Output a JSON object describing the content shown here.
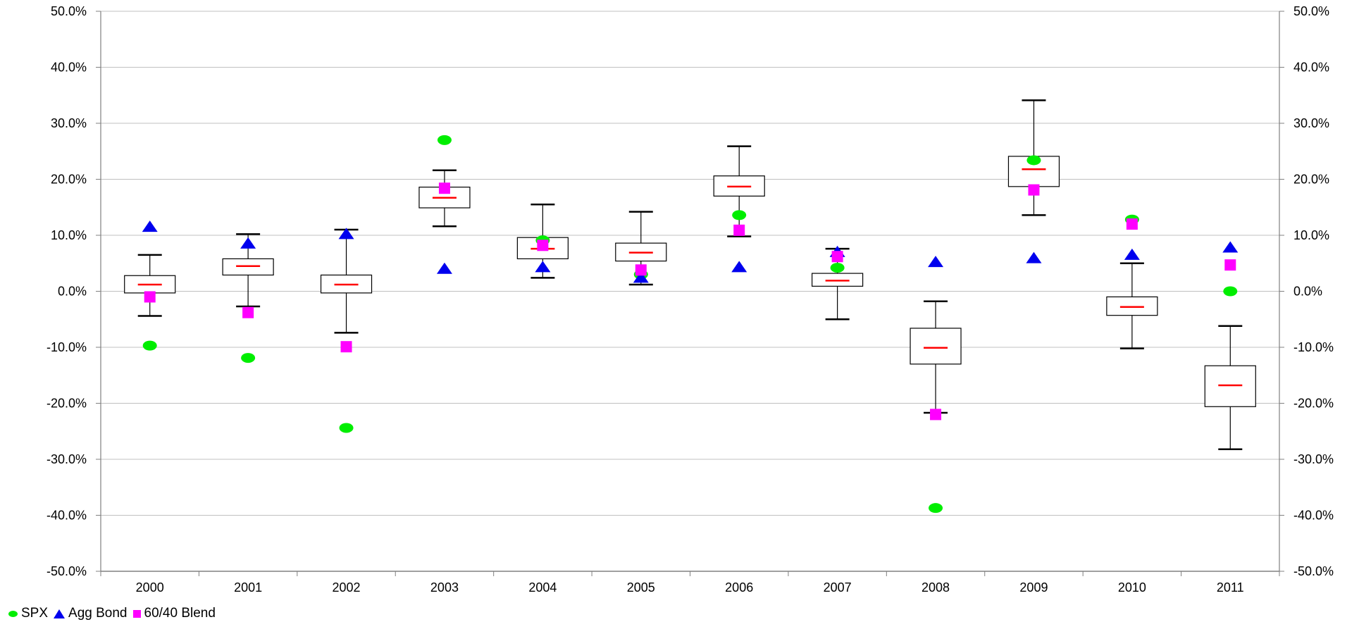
{
  "chart_data": {
    "type": "box",
    "categories": [
      "2000",
      "2001",
      "2002",
      "2003",
      "2004",
      "2005",
      "2006",
      "2007",
      "2008",
      "2009",
      "2010",
      "2011"
    ],
    "boxes": [
      {
        "min": -4.4,
        "q1": -0.3,
        "median": 1.2,
        "q3": 2.8,
        "max": 6.5
      },
      {
        "min": -2.7,
        "q1": 2.9,
        "median": 4.5,
        "q3": 5.8,
        "max": 10.2
      },
      {
        "min": -7.4,
        "q1": -0.3,
        "median": 1.2,
        "q3": 2.9,
        "max": 11.0
      },
      {
        "min": 11.6,
        "q1": 14.9,
        "median": 16.7,
        "q3": 18.6,
        "max": 21.6
      },
      {
        "min": 2.4,
        "q1": 5.8,
        "median": 7.6,
        "q3": 9.6,
        "max": 15.5
      },
      {
        "min": 1.2,
        "q1": 5.4,
        "median": 6.9,
        "q3": 8.6,
        "max": 14.2
      },
      {
        "min": 9.8,
        "q1": 17.0,
        "median": 18.7,
        "q3": 20.6,
        "max": 25.9
      },
      {
        "min": -5.0,
        "q1": 0.9,
        "median": 1.9,
        "q3": 3.2,
        "max": 7.6
      },
      {
        "min": -21.7,
        "q1": -13.0,
        "median": -10.1,
        "q3": -6.6,
        "max": -1.8
      },
      {
        "min": 13.6,
        "q1": 18.7,
        "median": 21.8,
        "q3": 24.1,
        "max": 34.1
      },
      {
        "min": -10.2,
        "q1": -4.3,
        "median": -2.8,
        "q3": -1.0,
        "max": 5.0
      },
      {
        "min": -28.2,
        "q1": -20.6,
        "median": -16.8,
        "q3": -13.3,
        "max": -6.2
      }
    ],
    "series": [
      {
        "name": "SPX",
        "marker": "circle",
        "color": "#00ee00",
        "values": [
          -9.7,
          -11.9,
          -24.4,
          27.0,
          9.1,
          3.0,
          13.6,
          4.2,
          -38.7,
          23.4,
          12.8,
          0.0
        ]
      },
      {
        "name": "Agg Bond",
        "marker": "triangle",
        "color": "#0000ee",
        "values": [
          11.5,
          8.5,
          10.2,
          4.0,
          4.3,
          2.4,
          4.3,
          7.0,
          5.2,
          5.9,
          6.5,
          7.8
        ]
      },
      {
        "name": "60/40 Blend",
        "marker": "square",
        "color": "#ff00ff",
        "values": [
          -1.0,
          -3.8,
          -9.9,
          18.4,
          8.2,
          3.8,
          10.9,
          6.2,
          -22.0,
          18.1,
          12.0,
          4.7
        ]
      }
    ],
    "ylim": [
      -50,
      50
    ],
    "yticks": [
      -50,
      -40,
      -30,
      -20,
      -10,
      0,
      10,
      20,
      30,
      40,
      50
    ],
    "ytick_labels": [
      "-50.0%",
      "-40.0%",
      "-30.0%",
      "-20.0%",
      "-10.0%",
      "0.0%",
      "10.0%",
      "20.0%",
      "30.0%",
      "40.0%",
      "50.0%"
    ],
    "secondary_y_axis": true,
    "grid": "horizontal",
    "legend_position": "bottom-left",
    "colors": {
      "box_edge": "#000000",
      "median": "#ff0000",
      "grid": "#c0c0c0",
      "axis": "#808080"
    }
  }
}
